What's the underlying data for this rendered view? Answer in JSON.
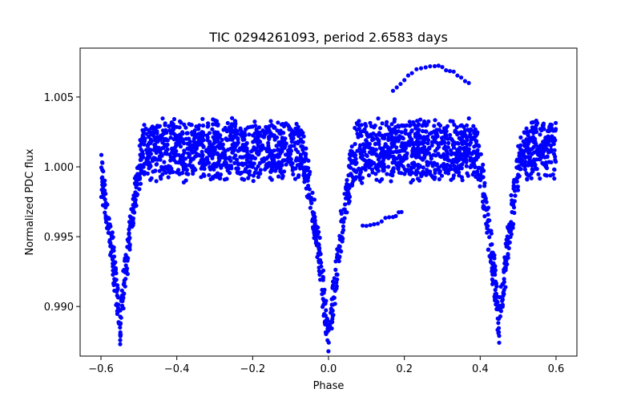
{
  "chart_data": {
    "type": "scatter",
    "title": "TIC 0294261093, period 2.6583 days",
    "xlabel": "Phase",
    "ylabel": "Normalized PDC flux",
    "xlim": [
      -0.655,
      0.655
    ],
    "ylim": [
      0.98645,
      1.0085
    ],
    "xticks": [
      -0.6,
      -0.4,
      -0.2,
      0.0,
      0.2,
      0.4,
      0.6
    ],
    "xtick_labels": [
      "−0.6",
      "−0.4",
      "−0.2",
      "0.0",
      "0.2",
      "0.4",
      "0.6"
    ],
    "yticks": [
      0.99,
      0.995,
      1.0,
      1.005
    ],
    "ytick_labels": [
      "0.990",
      "0.995",
      "1.000",
      "1.005"
    ],
    "grid": false,
    "marker_color": "#0000ff",
    "series": [
      {
        "name": "PDC flux",
        "x_range": [
          -0.6,
          0.6
        ],
        "baseline": 1.0012,
        "baseline_spread": 0.0018,
        "eclipses": [
          {
            "center": -0.55,
            "half_width": 0.06,
            "depth": 0.0125
          },
          {
            "center": 0.0,
            "half_width": 0.07,
            "depth": 0.0135
          },
          {
            "center": 0.45,
            "half_width": 0.06,
            "depth": 0.0125
          }
        ],
        "arc": [
          {
            "x": 0.17,
            "y": 1.0055
          },
          {
            "x": 0.22,
            "y": 1.0068
          },
          {
            "x": 0.28,
            "y": 1.0073
          },
          {
            "x": 0.33,
            "y": 1.0068
          },
          {
            "x": 0.38,
            "y": 1.0058
          }
        ],
        "lower_trail": [
          {
            "x": 0.09,
            "y": 0.9957
          },
          {
            "x": 0.13,
            "y": 0.996
          },
          {
            "x": 0.17,
            "y": 0.9965
          },
          {
            "x": 0.2,
            "y": 0.9968
          }
        ]
      }
    ]
  }
}
